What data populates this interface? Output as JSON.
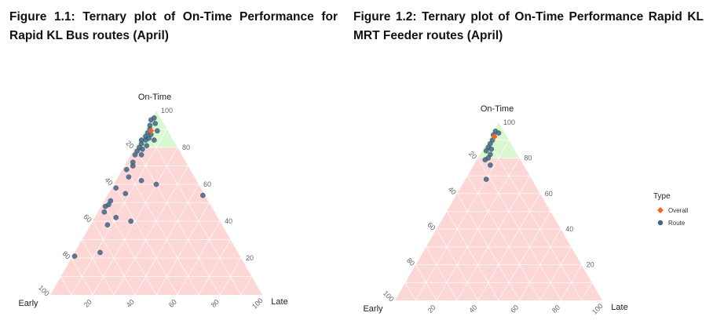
{
  "figures": [
    {
      "title": "Figure 1.1: Ternary plot of On-Time Performance for Rapid KL Bus routes (April)"
    },
    {
      "title": "Figure 1.2: Ternary plot of On-Time Performance Rapid KL MRT Feeder routes (April)"
    }
  ],
  "chart_data": [
    {
      "type": "scatter",
      "subtype": "ternary",
      "title": "Figure 1.1: Ternary plot of On-Time Performance for Rapid KL Bus routes (April)",
      "axes": {
        "top": "On-Time",
        "left": "Early",
        "right": "Late"
      },
      "ticks": [
        "20",
        "40",
        "60",
        "80",
        "100"
      ],
      "regions": [
        {
          "name": "on-time-80-plus",
          "on_time_min": 80,
          "color": "#d9f7d0"
        },
        {
          "name": "below-80",
          "on_time_max": 80,
          "color": "#fdd6d6"
        }
      ],
      "series": [
        {
          "name": "Overall",
          "color": "#f26522",
          "marker": "diamond",
          "points": [
            {
              "early": 8,
              "ontime": 89,
              "late": 3
            }
          ]
        },
        {
          "name": "Route",
          "color": "#3f6586",
          "marker": "circle",
          "points": [
            {
              "early": 5,
              "ontime": 95,
              "late": 0
            },
            {
              "early": 3,
              "ontime": 96,
              "late": 1
            },
            {
              "early": 7,
              "ontime": 92,
              "late": 1
            },
            {
              "early": 4,
              "ontime": 93,
              "late": 3
            },
            {
              "early": 10,
              "ontime": 88,
              "late": 2
            },
            {
              "early": 8,
              "ontime": 90,
              "late": 2
            },
            {
              "early": 12,
              "ontime": 86,
              "late": 2
            },
            {
              "early": 9,
              "ontime": 87,
              "late": 4
            },
            {
              "early": 5,
              "ontime": 89,
              "late": 6
            },
            {
              "early": 15,
              "ontime": 84,
              "late": 1
            },
            {
              "early": 13,
              "ontime": 84,
              "late": 3
            },
            {
              "early": 11,
              "ontime": 85,
              "late": 4
            },
            {
              "early": 9,
              "ontime": 84,
              "late": 7
            },
            {
              "early": 16,
              "ontime": 82,
              "late": 2
            },
            {
              "early": 14,
              "ontime": 81,
              "late": 5
            },
            {
              "early": 18,
              "ontime": 80,
              "late": 2
            },
            {
              "early": 17,
              "ontime": 79,
              "late": 4
            },
            {
              "early": 20,
              "ontime": 78,
              "late": 2
            },
            {
              "early": 19,
              "ontime": 76,
              "late": 5
            },
            {
              "early": 22,
              "ontime": 76,
              "late": 2
            },
            {
              "early": 25,
              "ontime": 72,
              "late": 3
            },
            {
              "early": 26,
              "ontime": 70,
              "late": 4
            },
            {
              "early": 30,
              "ontime": 68,
              "late": 2
            },
            {
              "early": 31,
              "ontime": 64,
              "late": 5
            },
            {
              "early": 26,
              "ontime": 62,
              "late": 12
            },
            {
              "early": 20,
              "ontime": 60,
              "late": 20
            },
            {
              "early": 40,
              "ontime": 58,
              "late": 2
            },
            {
              "early": 37,
              "ontime": 55,
              "late": 8
            },
            {
              "early": 46,
              "ontime": 51,
              "late": 3
            },
            {
              "early": 48,
              "ontime": 49,
              "late": 3
            },
            {
              "early": 50,
              "ontime": 48,
              "late": 2
            },
            {
              "early": 52,
              "ontime": 45,
              "late": 3
            },
            {
              "early": 48,
              "ontime": 42,
              "late": 10
            },
            {
              "early": 54,
              "ontime": 38,
              "late": 8
            },
            {
              "early": 42,
              "ontime": 40,
              "late": 18
            },
            {
              "early": 1,
              "ontime": 54,
              "late": 45
            },
            {
              "early": 65,
              "ontime": 23,
              "late": 12
            },
            {
              "early": 78,
              "ontime": 21,
              "late": 1
            }
          ]
        }
      ]
    },
    {
      "type": "scatter",
      "subtype": "ternary",
      "title": "Figure 1.2: Ternary plot of On-Time Performance Rapid KL MRT Feeder routes (April)",
      "axes": {
        "top": "On-Time",
        "left": "Early",
        "right": "Late"
      },
      "ticks": [
        "20",
        "40",
        "60",
        "80",
        "100"
      ],
      "regions": [
        {
          "name": "on-time-80-plus",
          "on_time_min": 80,
          "color": "#d9f7d0"
        },
        {
          "name": "below-80",
          "on_time_max": 80,
          "color": "#fdd6d6"
        }
      ],
      "series": [
        {
          "name": "Overall",
          "color": "#f26522",
          "marker": "diamond",
          "points": [
            {
              "early": 6,
              "ontime": 92,
              "late": 2
            }
          ]
        },
        {
          "name": "Route",
          "color": "#3f6586",
          "marker": "circle",
          "points": [
            {
              "early": 4,
              "ontime": 95,
              "late": 1
            },
            {
              "early": 3,
              "ontime": 94,
              "late": 3
            },
            {
              "early": 6,
              "ontime": 93,
              "late": 1
            },
            {
              "early": 8,
              "ontime": 90,
              "late": 2
            },
            {
              "early": 10,
              "ontime": 88,
              "late": 2
            },
            {
              "early": 12,
              "ontime": 86,
              "late": 2
            },
            {
              "early": 11,
              "ontime": 85,
              "late": 4
            },
            {
              "early": 14,
              "ontime": 84,
              "late": 2
            },
            {
              "early": 13,
              "ontime": 82,
              "late": 5
            },
            {
              "early": 15,
              "ontime": 80,
              "late": 5
            },
            {
              "early": 17,
              "ontime": 79,
              "late": 4
            },
            {
              "early": 16,
              "ontime": 76,
              "late": 8
            },
            {
              "early": 22,
              "ontime": 68,
              "late": 10
            }
          ]
        }
      ]
    }
  ],
  "legend": {
    "title": "Type",
    "items": [
      {
        "label": "Overall",
        "color": "#f26522",
        "marker": "diamond"
      },
      {
        "label": "Route",
        "color": "#3f6586",
        "marker": "circle"
      }
    ]
  }
}
